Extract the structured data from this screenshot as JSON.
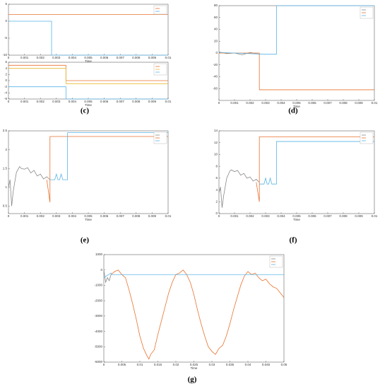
{
  "chart_data": [
    {
      "type": "line",
      "label": "(c)",
      "xlabel": "Time",
      "xlim": [
        0,
        0.01
      ],
      "xticks": [
        0,
        0.001,
        0.002,
        0.003,
        0.004,
        0.005,
        0.006,
        0.007,
        0.008,
        0.009,
        0.01
      ],
      "ylim": [
        -10,
        5
      ],
      "yticks": [
        -10,
        -5,
        0,
        5
      ],
      "series": [
        {
          "color": "#e8722e",
          "x": [
            0,
            0.01
          ],
          "values": [
            2,
            2
          ]
        },
        {
          "color": "#5ab4e5",
          "x": [
            0,
            0.0027,
            0.0027,
            0.01
          ],
          "values": [
            0,
            0,
            -10,
            -10
          ]
        }
      ]
    },
    {
      "type": "line",
      "xlabel": "Time",
      "xlim": [
        0,
        0.01
      ],
      "xticks": [
        0,
        0.001,
        0.002,
        0.003,
        0.004,
        0.005,
        0.006,
        0.007,
        0.008,
        0.009,
        0.01
      ],
      "ylim": [
        -6,
        6
      ],
      "yticks": [
        -6,
        -4,
        -2,
        0,
        2,
        4,
        6
      ],
      "series": [
        {
          "color": "#e8722e",
          "x": [
            0,
            0.0036,
            0.0036,
            0.01
          ],
          "values": [
            5,
            5,
            0,
            0
          ]
        },
        {
          "color": "#e8b830",
          "x": [
            0,
            0.0036,
            0.0036,
            0.01
          ],
          "values": [
            4,
            4,
            -1,
            -1
          ]
        },
        {
          "color": "#5ab4e5",
          "x": [
            0,
            0.0036,
            0.0036,
            0.01
          ],
          "values": [
            -2,
            -2,
            -6,
            -6
          ]
        }
      ]
    },
    {
      "type": "line",
      "label": "(d)",
      "xlabel": "Time",
      "xlim": [
        0,
        0.01
      ],
      "xticks": [
        0,
        0.001,
        0.002,
        0.003,
        0.004,
        0.005,
        0.006,
        0.007,
        0.008,
        0.009,
        0.01
      ],
      "ylim": [
        -80,
        80
      ],
      "yticks": [
        -60,
        -40,
        -20,
        0,
        20,
        40,
        60,
        80
      ],
      "series": [
        {
          "color": "#888888",
          "x": [
            0,
            0.0005,
            0.001,
            0.0015,
            0.002,
            0.0026
          ],
          "values": [
            2,
            -1,
            0,
            -3,
            1,
            -2
          ]
        },
        {
          "color": "#e8722e",
          "x": [
            0,
            0.0026,
            0.0026,
            0.01
          ],
          "values": [
            0,
            0,
            -62,
            -62
          ]
        },
        {
          "color": "#5ab4e5",
          "x": [
            0,
            0.001,
            0.002,
            0.003,
            0.0037,
            0.0037,
            0.01
          ],
          "values": [
            1,
            0,
            -1,
            -2,
            -2,
            80,
            80
          ]
        }
      ]
    },
    {
      "type": "line",
      "label": "(e)",
      "xlabel": "Time",
      "xlim": [
        0,
        0.01
      ],
      "xticks": [
        0,
        0.001,
        0.002,
        0.003,
        0.004,
        0.005,
        0.006,
        0.007,
        0.008,
        0.009,
        0.01
      ],
      "ylim": [
        0.3,
        2.5
      ],
      "yticks": [
        0.5,
        1,
        1.5,
        2,
        2.5
      ],
      "series": [
        {
          "color": "#888888",
          "x": [
            0,
            0.0001,
            0.0002,
            0.0003,
            0.0005,
            0.0007,
            0.0008,
            0.001,
            0.0012,
            0.0014,
            0.0016,
            0.0018,
            0.002,
            0.0022,
            0.0024,
            0.0026
          ],
          "values": [
            1.0,
            1.2,
            0.5,
            0.9,
            1.4,
            1.55,
            1.5,
            1.48,
            1.52,
            1.38,
            1.45,
            1.3,
            1.35,
            1.22,
            1.28,
            1.2
          ]
        },
        {
          "color": "#e8722e",
          "x": [
            0.0024,
            0.0026,
            0.0026,
            0.0027,
            0.01
          ],
          "values": [
            1.2,
            0.6,
            2.35,
            2.35,
            2.35
          ]
        },
        {
          "color": "#5ab4e5",
          "x": [
            0.0026,
            0.0029,
            0.003,
            0.0031,
            0.0032,
            0.0033,
            0.0034,
            0.0037,
            0.0037,
            0.01
          ],
          "values": [
            1.2,
            1.2,
            1.35,
            1.2,
            1.2,
            1.35,
            1.2,
            1.2,
            2.45,
            2.45
          ]
        }
      ]
    },
    {
      "type": "line",
      "label": "(f)",
      "xlabel": "Time",
      "xlim": [
        0,
        0.01
      ],
      "xticks": [
        0,
        0.001,
        0.002,
        0.003,
        0.004,
        0.005,
        0.006,
        0.007,
        0.008,
        0.009,
        0.01
      ],
      "ylim": [
        0,
        14
      ],
      "yticks": [
        0,
        2,
        4,
        6,
        8,
        10,
        12,
        14
      ],
      "series": [
        {
          "color": "#888888",
          "x": [
            0,
            0.0001,
            0.0002,
            0.0003,
            0.0005,
            0.0007,
            0.0008,
            0.001,
            0.0012,
            0.0014,
            0.0016,
            0.0018,
            0.002,
            0.0022,
            0.0024,
            0.0026
          ],
          "values": [
            3.5,
            4.5,
            1,
            3,
            6,
            7.2,
            7.4,
            7.1,
            7.3,
            6.5,
            6.8,
            6.0,
            6.2,
            5.5,
            5.8,
            5.3
          ]
        },
        {
          "color": "#e8722e",
          "x": [
            0.0024,
            0.0026,
            0.0026,
            0.0027,
            0.01
          ],
          "values": [
            5.3,
            2,
            13,
            13,
            13
          ]
        },
        {
          "color": "#5ab4e5",
          "x": [
            0.0026,
            0.0029,
            0.003,
            0.0031,
            0.0032,
            0.0033,
            0.0034,
            0.0037,
            0.0037,
            0.01
          ],
          "values": [
            5,
            5,
            6,
            5,
            5,
            6,
            5,
            5,
            12.2,
            12.2
          ]
        }
      ]
    },
    {
      "type": "line",
      "label": "(g)",
      "xlabel": "Time",
      "xlim": [
        0,
        0.05
      ],
      "xticks": [
        0,
        0.005,
        0.01,
        0.015,
        0.02,
        0.025,
        0.03,
        0.035,
        0.04,
        0.045,
        0.05
      ],
      "ylim": [
        -6000,
        1000
      ],
      "yticks": [
        -6000,
        -5000,
        -4000,
        -3000,
        -2000,
        -1000,
        0,
        1000
      ],
      "series": [
        {
          "color": "#888888",
          "x": [
            0,
            0.0005,
            0.001,
            0.0015,
            0.002
          ],
          "values": [
            0,
            -800,
            -500,
            -700,
            -300
          ]
        },
        {
          "color": "#e8722e",
          "x": [
            0.002,
            0.003,
            0.004,
            0.005,
            0.006,
            0.007,
            0.008,
            0.009,
            0.01,
            0.011,
            0.012,
            0.0125,
            0.013,
            0.014,
            0.015,
            0.016,
            0.017,
            0.018,
            0.019,
            0.02,
            0.021,
            0.022,
            0.023,
            0.024,
            0.025,
            0.026,
            0.027,
            0.028,
            0.029,
            0.03,
            0.031,
            0.032,
            0.033,
            0.034,
            0.035,
            0.036,
            0.037,
            0.038,
            0.039,
            0.04,
            0.041,
            0.042,
            0.043,
            0.044,
            0.045,
            0.046,
            0.047,
            0.048,
            0.049,
            0.05
          ],
          "values": [
            -300,
            -100,
            0,
            -300,
            -500,
            -1300,
            -2200,
            -3200,
            -4300,
            -5100,
            -5600,
            -5800,
            -5500,
            -5200,
            -4200,
            -3300,
            -2400,
            -1500,
            -800,
            -300,
            -200,
            0,
            -300,
            -800,
            -1600,
            -2600,
            -3500,
            -4300,
            -5000,
            -5300,
            -5500,
            -5100,
            -4900,
            -4300,
            -3500,
            -2600,
            -1800,
            -1000,
            -400,
            -100,
            -300,
            -200,
            -500,
            -700,
            -600,
            -900,
            -1100,
            -1200,
            -1500,
            -1800
          ]
        },
        {
          "color": "#5ab4e5",
          "x": [
            0,
            0.002,
            0.0022,
            0.05
          ],
          "values": [
            -500,
            -200,
            -300,
            -300
          ]
        }
      ]
    }
  ]
}
